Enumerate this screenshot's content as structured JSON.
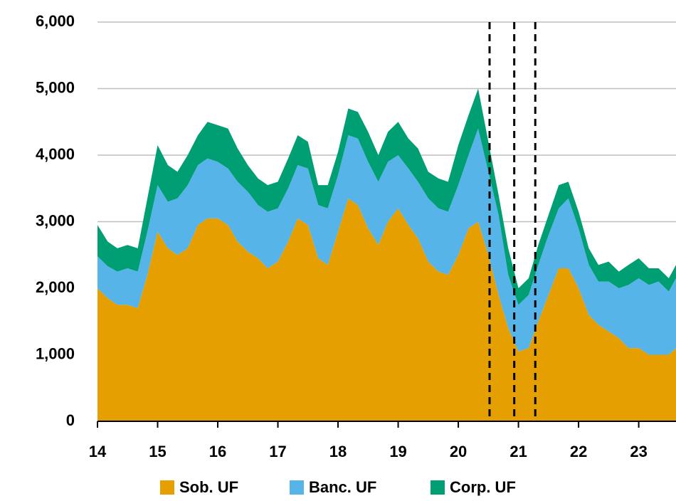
{
  "chart_data": {
    "type": "stacked_area",
    "x": [
      14,
      14.17,
      14.33,
      14.5,
      14.67,
      14.83,
      15,
      15.17,
      15.33,
      15.5,
      15.67,
      15.83,
      16,
      16.17,
      16.33,
      16.5,
      16.67,
      16.83,
      17,
      17.17,
      17.33,
      17.5,
      17.67,
      17.83,
      18,
      18.17,
      18.33,
      18.5,
      18.67,
      18.83,
      19,
      19.17,
      19.33,
      19.5,
      19.67,
      19.83,
      20,
      20.17,
      20.33,
      20.5,
      20.67,
      20.83,
      21,
      21.17,
      21.33,
      21.5,
      21.67,
      21.83,
      22,
      22.17,
      22.33,
      22.5,
      22.67,
      22.83,
      23,
      23.17,
      23.33,
      23.5,
      23.62
    ],
    "series": [
      {
        "name": "Sob. UF",
        "color": "#e69f00",
        "values": [
          2000,
          1850,
          1750,
          1750,
          1700,
          2200,
          2850,
          2600,
          2500,
          2600,
          2950,
          3050,
          3050,
          2950,
          2700,
          2550,
          2450,
          2300,
          2400,
          2700,
          3050,
          2950,
          2450,
          2350,
          2850,
          3350,
          3250,
          2900,
          2650,
          3000,
          3200,
          2950,
          2750,
          2400,
          2250,
          2200,
          2500,
          2900,
          3000,
          2500,
          1900,
          1400,
          1050,
          1100,
          1500,
          1900,
          2300,
          2300,
          2000,
          1600,
          1450,
          1350,
          1250,
          1100,
          1100,
          1000,
          1000,
          1000,
          1100
        ]
      },
      {
        "name": "Banc. UF",
        "color": "#56b4e9",
        "values": [
          480,
          480,
          500,
          550,
          550,
          650,
          700,
          700,
          850,
          950,
          900,
          900,
          850,
          850,
          900,
          900,
          800,
          850,
          800,
          800,
          800,
          850,
          800,
          850,
          850,
          950,
          1000,
          1000,
          950,
          900,
          800,
          850,
          850,
          950,
          950,
          950,
          1050,
          1100,
          1400,
          1250,
          1200,
          800,
          700,
          800,
          850,
          900,
          900,
          1050,
          900,
          750,
          650,
          750,
          750,
          950,
          1050,
          1050,
          1100,
          950,
          1050
        ]
      },
      {
        "name": "Corp. UF",
        "color": "#009e73",
        "values": [
          470,
          370,
          350,
          350,
          350,
          500,
          600,
          550,
          400,
          450,
          450,
          550,
          550,
          600,
          500,
          400,
          400,
          400,
          400,
          450,
          450,
          400,
          300,
          350,
          350,
          400,
          400,
          450,
          400,
          450,
          500,
          450,
          500,
          400,
          450,
          450,
          600,
          600,
          600,
          450,
          300,
          400,
          250,
          250,
          300,
          300,
          350,
          250,
          250,
          250,
          250,
          300,
          250,
          300,
          300,
          250,
          200,
          200,
          200
        ]
      }
    ],
    "xlim": [
      14,
      23.62
    ],
    "xticks": [
      14,
      15,
      16,
      17,
      18,
      19,
      20,
      21,
      22,
      23
    ],
    "ylim": [
      0,
      6000
    ],
    "yticks": [
      0,
      {
        "value": 1000,
        "label": "1,000"
      },
      {
        "value": 2000,
        "label": "2,000"
      },
      {
        "value": 3000,
        "label": "3,000"
      },
      {
        "value": 4000,
        "label": "4,000"
      },
      {
        "value": 5000,
        "label": "5,000"
      },
      {
        "value": 6000,
        "label": "6,000"
      }
    ],
    "grid": true,
    "vlines": [
      20.52,
      20.93,
      21.28
    ]
  }
}
